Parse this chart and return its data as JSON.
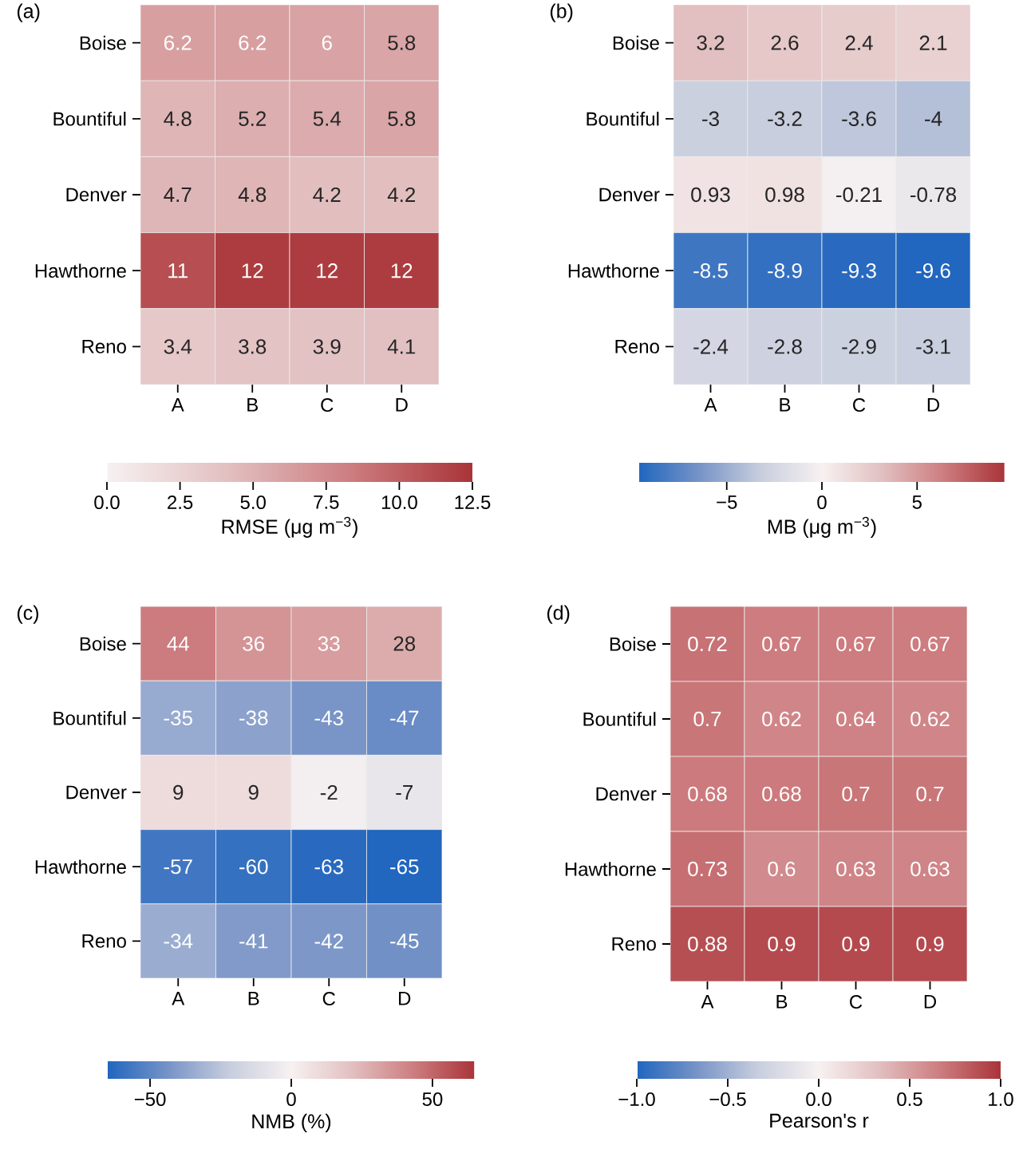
{
  "chart_data": [
    {
      "type": "heatmap",
      "title": "(a)",
      "categories": [
        "A",
        "B",
        "C",
        "D"
      ],
      "y_categories": [
        "Boise",
        "Bountiful",
        "Denver",
        "Hawthorne",
        "Reno"
      ],
      "cells": [
        [
          6.2,
          6.2,
          6,
          5.8
        ],
        [
          4.8,
          5.2,
          5.4,
          5.8
        ],
        [
          4.7,
          4.8,
          4.2,
          4.2
        ],
        [
          11,
          12,
          12,
          12
        ],
        [
          3.4,
          3.8,
          3.9,
          4.1
        ]
      ],
      "data_labels": true,
      "clim": [
        0,
        12.5
      ],
      "cticks": [
        {
          "value": 0,
          "label": "0.0"
        },
        2.5,
        {
          "value": 5,
          "label": "5.0"
        },
        7.5,
        {
          "value": 10,
          "label": "10.0"
        },
        12.5
      ],
      "clabel": "RMSE (μg m$^{−3}$)"
    },
    {
      "type": "heatmap",
      "title": "(b)",
      "categories": [
        "A",
        "B",
        "C",
        "D"
      ],
      "y_categories": [
        "Boise",
        "Bountiful",
        "Denver",
        "Hawthorne",
        "Reno"
      ],
      "cells": [
        [
          3.2,
          2.6,
          2.4,
          2.1
        ],
        [
          -3,
          -3.2,
          -3.6,
          -4
        ],
        [
          0.93,
          0.98,
          -0.21,
          -0.78
        ],
        [
          -8.5,
          -8.9,
          -9.3,
          -9.6
        ],
        [
          -2.4,
          -2.8,
          -2.9,
          -3.1
        ]
      ],
      "data_labels": true,
      "clim": [
        -9.6,
        9.6
      ],
      "cticks": [
        {
          "value": -5,
          "label": "−5"
        },
        0,
        5
      ],
      "clabel": "MB (μg m$^{−3}$)"
    },
    {
      "type": "heatmap",
      "title": "(c)",
      "categories": [
        "A",
        "B",
        "C",
        "D"
      ],
      "y_categories": [
        "Boise",
        "Bountiful",
        "Denver",
        "Hawthorne",
        "Reno"
      ],
      "cells": [
        [
          44,
          36,
          33,
          28
        ],
        [
          -35,
          -38,
          -43,
          -47
        ],
        [
          9,
          9,
          -2,
          -7
        ],
        [
          -57,
          -60,
          -63,
          -65
        ],
        [
          -34,
          -41,
          -42,
          -45
        ]
      ],
      "data_labels": true,
      "clim": [
        -65,
        65
      ],
      "cticks": [
        {
          "value": -50,
          "label": "−50"
        },
        0,
        50
      ],
      "clabel": "NMB (%)"
    },
    {
      "type": "heatmap",
      "title": "(d)",
      "categories": [
        "A",
        "B",
        "C",
        "D"
      ],
      "y_categories": [
        "Boise",
        "Bountiful",
        "Denver",
        "Hawthorne",
        "Reno"
      ],
      "cells": [
        [
          0.72,
          0.67,
          0.67,
          0.67
        ],
        [
          0.7,
          0.62,
          0.64,
          0.62
        ],
        [
          0.68,
          0.68,
          0.7,
          0.7
        ],
        [
          0.73,
          0.6,
          0.63,
          0.63
        ],
        [
          0.88,
          0.9,
          0.9,
          0.9
        ]
      ],
      "data_labels": true,
      "clim": [
        -1,
        1
      ],
      "cticks": [
        {
          "value": -1,
          "label": "−1.0"
        },
        {
          "value": -0.5,
          "label": "−0.5"
        },
        {
          "value": 0,
          "label": "0.0"
        },
        0.5,
        {
          "value": 1,
          "label": "1.0"
        }
      ],
      "clabel": "Pearson's r"
    }
  ]
}
